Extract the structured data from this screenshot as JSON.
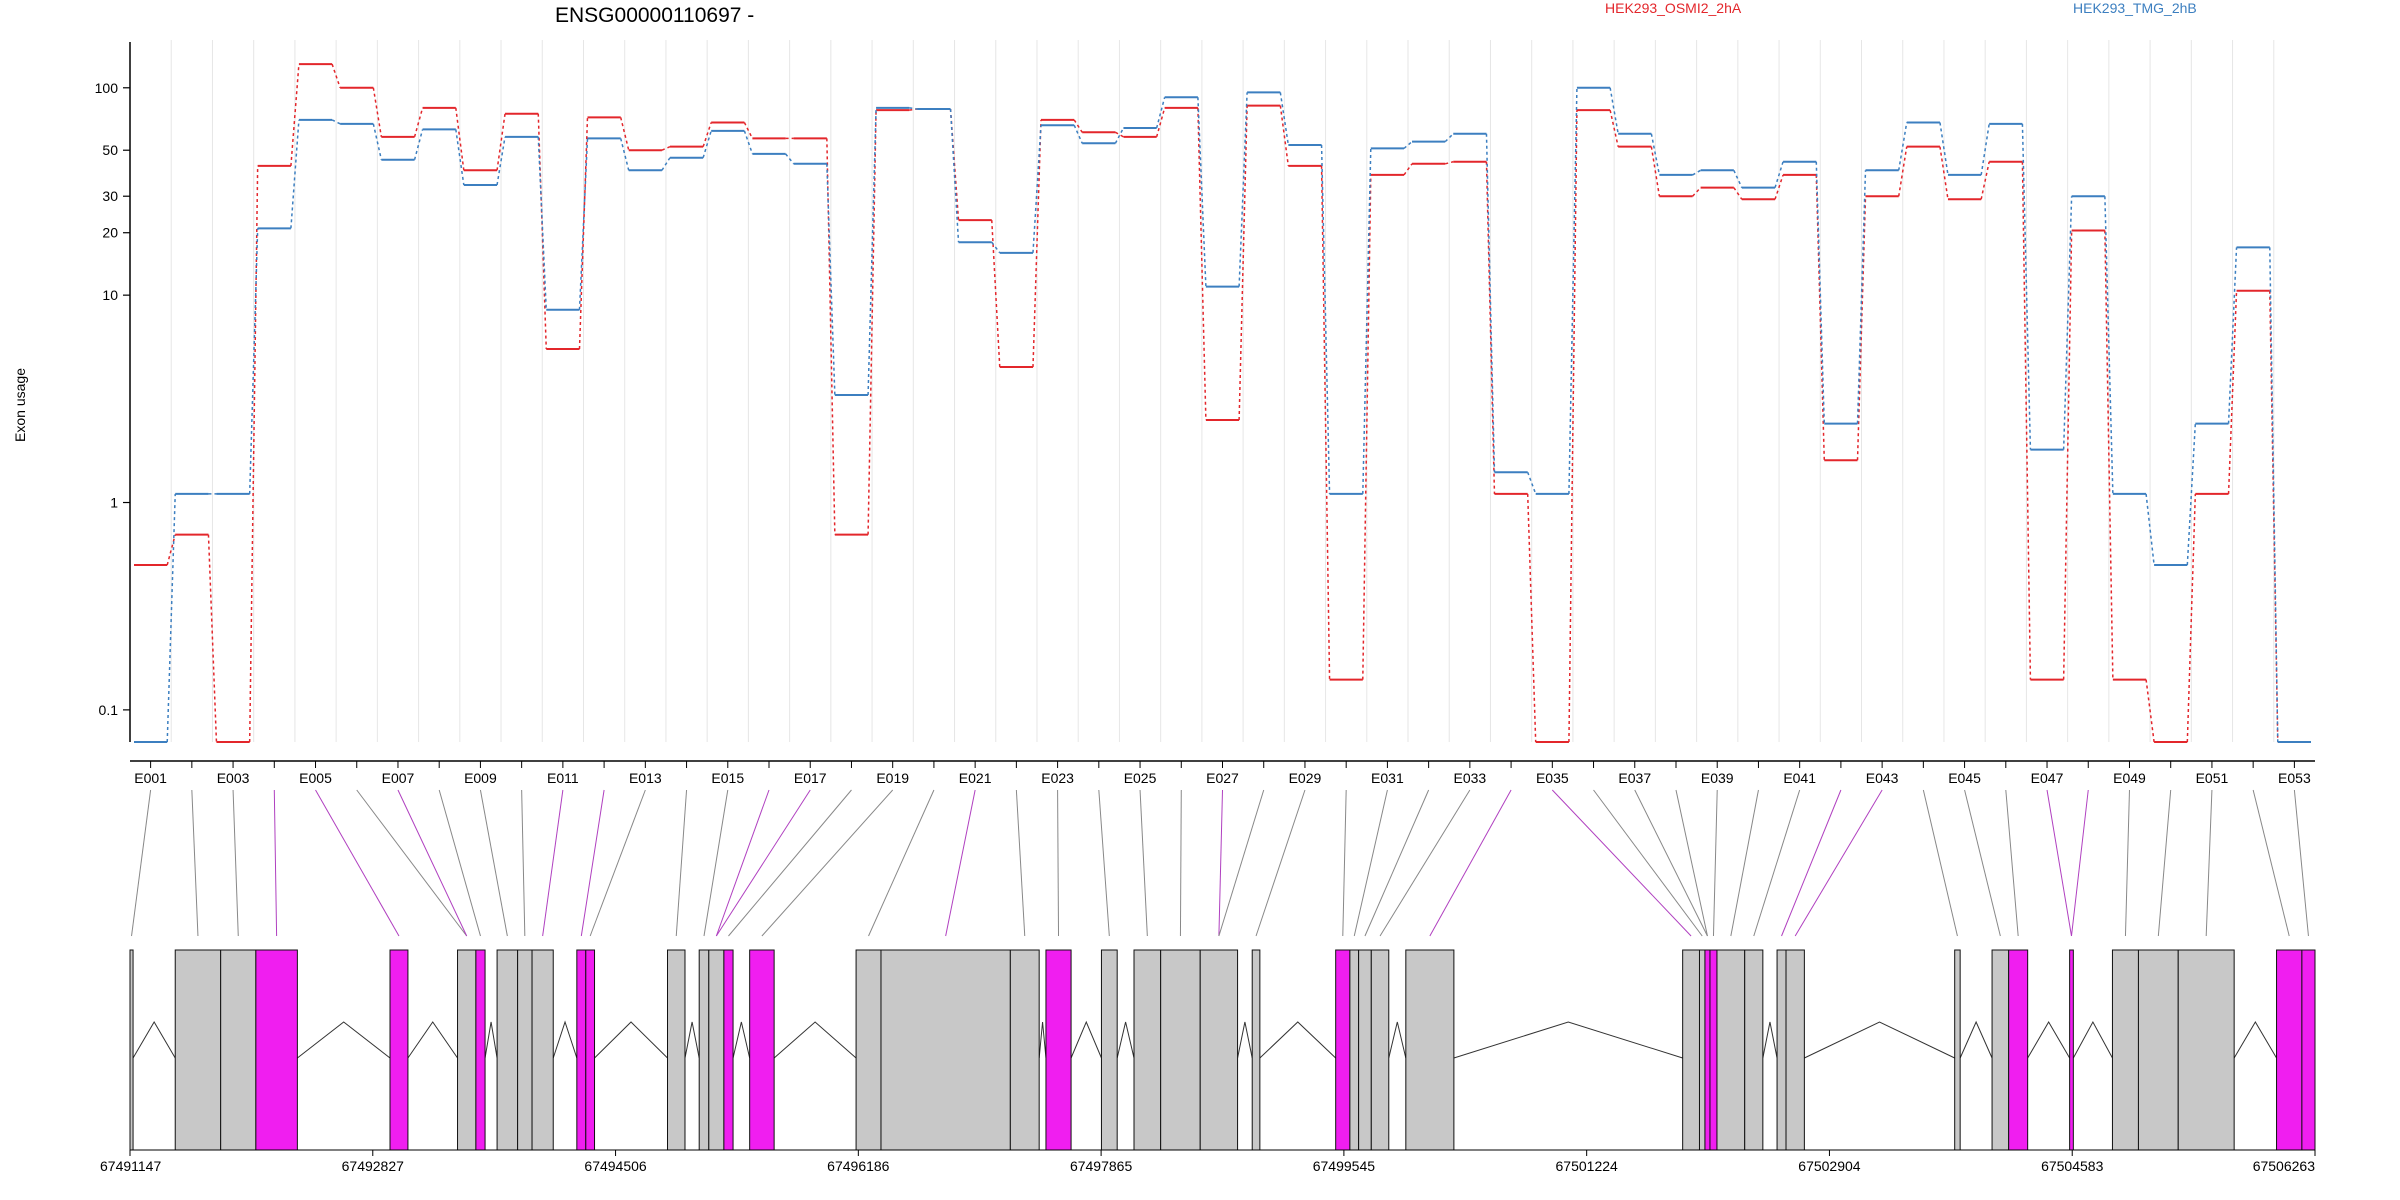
{
  "chart_data": {
    "type": "line",
    "title": "ENSG00000110697 -",
    "ylabel": "Exon usage",
    "y_scale": "log",
    "y_ticks": [
      0.1,
      1,
      10,
      20,
      30,
      50,
      100
    ],
    "y_tick_labels": [
      "0.1",
      "1",
      "10",
      "20",
      "30",
      "50",
      "100"
    ],
    "ylim": [
      0.07,
      170
    ],
    "categories": [
      "E001",
      "E002",
      "E003",
      "E004",
      "E005",
      "E006",
      "E007",
      "E008",
      "E009",
      "E010",
      "E011",
      "E012",
      "E013",
      "E014",
      "E015",
      "E016",
      "E017",
      "E018",
      "E019",
      "E020",
      "E021",
      "E022",
      "E023",
      "E024",
      "E025",
      "E026",
      "E027",
      "E028",
      "E029",
      "E030",
      "E031",
      "E032",
      "E033",
      "E034",
      "E035",
      "E036",
      "E037",
      "E038",
      "E039",
      "E040",
      "E041",
      "E042",
      "E043",
      "E044",
      "E045",
      "E046",
      "E047",
      "E048",
      "E049",
      "E050",
      "E051",
      "E052",
      "E053"
    ],
    "x_tick_labels": [
      "E001",
      "E003",
      "E005",
      "E007",
      "E009",
      "E011",
      "E013",
      "E015",
      "E017",
      "E019",
      "E021",
      "E023",
      "E025",
      "E027",
      "E029",
      "E031",
      "E033",
      "E035",
      "E037",
      "E039",
      "E041",
      "E043",
      "E045",
      "E047",
      "E049",
      "E051",
      "E053"
    ],
    "legend_position": "top",
    "series": [
      {
        "name": "HEK293_OSMI2_2hA",
        "color": "#e3262b",
        "values": [
          0.5,
          0.7,
          0.07,
          42,
          130,
          100,
          58,
          80,
          40,
          75,
          5.5,
          72,
          50,
          52,
          68,
          57,
          57,
          0.7,
          78,
          79,
          23,
          4.5,
          70,
          61,
          58,
          80,
          2.5,
          82,
          42,
          0.14,
          38,
          43,
          44,
          1.1,
          0.07,
          78,
          52,
          30,
          33,
          29,
          38,
          1.6,
          30,
          52,
          29,
          44,
          0.14,
          20.5,
          0.14,
          0.07,
          1.1,
          10.5,
          0.07
        ]
      },
      {
        "name": "HEK293_TMG_2hB",
        "color": "#3c7fc0",
        "values": [
          0.07,
          1.1,
          1.1,
          21,
          70,
          67,
          45,
          63,
          34,
          58,
          8.5,
          57,
          40,
          46,
          62,
          48,
          43,
          3.3,
          80,
          79,
          18,
          16,
          66,
          54,
          64,
          90,
          11,
          95,
          53,
          1.1,
          51,
          55,
          60,
          1.4,
          1.1,
          100,
          60,
          38,
          40,
          33,
          44,
          2.4,
          40,
          68,
          38,
          67,
          1.8,
          30,
          1.1,
          0.5,
          2.4,
          17,
          0.07
        ]
      }
    ],
    "genomic_axis_labels": [
      "67491147",
      "67492827",
      "67494506",
      "67496186",
      "67497865",
      "67499545",
      "67501224",
      "67502904",
      "67504583",
      "67506263"
    ],
    "highlight_color": "#f01ef0",
    "exon_box_color": "#c8c8c8",
    "exon_highlighted": [
      false,
      false,
      false,
      true,
      true,
      false,
      true,
      false,
      false,
      false,
      true,
      true,
      false,
      false,
      false,
      true,
      true,
      false,
      false,
      false,
      true,
      false,
      false,
      false,
      false,
      false,
      true,
      false,
      false,
      false,
      false,
      false,
      false,
      true,
      true,
      false,
      false,
      false,
      false,
      false,
      false,
      true,
      true,
      false,
      false,
      false,
      true,
      true,
      false,
      false,
      false,
      false,
      false
    ],
    "grid": true
  }
}
